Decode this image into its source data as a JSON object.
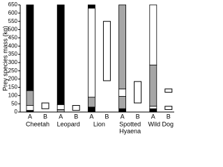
{
  "chart_data": {
    "type": "stacked-range-bar",
    "ylabel": "Prey species mass (kg)",
    "ylim": [
      0,
      650
    ],
    "yticks": [
      0,
      50,
      100,
      150,
      200,
      250,
      300,
      350,
      400,
      450,
      500,
      550,
      600,
      650
    ],
    "groups": [
      [
        "Cheetah"
      ],
      [
        "Leopard"
      ],
      [
        "Lion"
      ],
      [
        "Spotted",
        "Hyaena"
      ],
      [
        "Wild Dog"
      ]
    ],
    "sub_labels": [
      "A",
      "B"
    ],
    "stacks": [
      {
        "values": [
          10,
          30,
          90,
          520
        ],
        "colors": [
          "#000000",
          "#ffffff",
          "#a6a6a6",
          "#000000"
        ]
      },
      {
        "values": [
          15,
          30,
          605
        ],
        "colors": [
          "#a6a6a6",
          "#ffffff",
          "#000000"
        ]
      },
      {
        "values": [
          30,
          60,
          540,
          20
        ],
        "colors": [
          "#000000",
          "#a6a6a6",
          "#ffffff",
          "#000000"
        ]
      },
      {
        "values": [
          20,
          75,
          45,
          510
        ],
        "colors": [
          "#000000",
          "#a6a6a6",
          "#ffffff",
          "#a6a6a6"
        ]
      },
      {
        "values": [
          20,
          15,
          250,
          365
        ],
        "colors": [
          "#000000",
          "#ffffff",
          "#a6a6a6",
          "#ffffff"
        ]
      }
    ],
    "ranges": [
      [
        [
          20,
          55
        ]
      ],
      [
        [
          10,
          40
        ]
      ],
      [
        [
          190,
          550
        ]
      ],
      [
        [
          55,
          185
        ]
      ],
      [
        [
          15,
          35
        ],
        [
          120,
          140
        ]
      ]
    ]
  }
}
